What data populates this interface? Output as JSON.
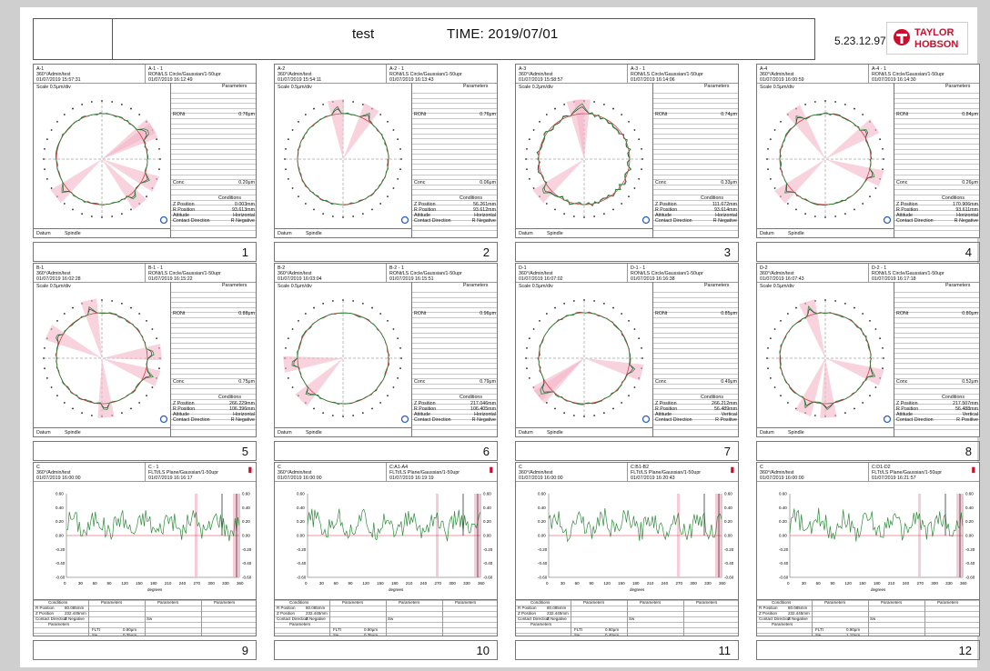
{
  "header": {
    "title": "test",
    "time": "TIME: 2019/07/01",
    "version": "5.23.12.97"
  },
  "logo": {
    "line1": "TAYLOR",
    "line2": "HOBSON",
    "color": "#c8102e"
  },
  "panels": [
    {
      "n": "1",
      "id": "A-1",
      "id2": "A-1 - 1",
      "user": "360°/Admin/test",
      "date": "01/07/2019 15:57:31",
      "method": "RONt/LS Circle/Gaussian/1-50upr",
      "date2": "01/07/2019 16:12:49",
      "scale": "Scale 0.5μm/div",
      "ront": "0.76μm",
      "conc": "0.20μm",
      "zpos": "0.003mm",
      "rpos": "93.613mm",
      "att": "Horizontal",
      "dir": "R Negative"
    },
    {
      "n": "2",
      "id": "A-2",
      "id2": "A-2 - 1",
      "user": "360°/Admin/test",
      "date": "01/07/2019 15:54:11",
      "method": "RONt/LS Circle/Gaussian/1-50upr",
      "date2": "01/07/2019 16:13:43",
      "scale": "Scale 0.5μm/div",
      "ront": "0.76μm",
      "conc": "0.06μm",
      "zpos": "56.261mm",
      "rpos": "93.612mm",
      "att": "Horizontal",
      "dir": "R Negative"
    },
    {
      "n": "3",
      "id": "A-3",
      "id2": "A-3 - 1",
      "user": "360°/Admin/test",
      "date": "01/07/2019 15:58:57",
      "method": "RONt/LS Circle/Gaussian/1-50upr",
      "date2": "01/07/2019 16:14:06",
      "scale": "Scale 0.2μm/div",
      "ront": "0.74μm",
      "conc": "0.33μm",
      "zpos": "111.672mm",
      "rpos": "93.614mm",
      "att": "Horizontal",
      "dir": "R Negative"
    },
    {
      "n": "4",
      "id": "A-4",
      "id2": "A-4 - 1",
      "user": "360°/Admin/test",
      "date": "01/07/2019 16:00:59",
      "method": "RONt/LS Circle/Gaussian/1-50upr",
      "date2": "01/07/2019 16:14:30",
      "scale": "Scale 0.5μm/div",
      "ront": "0.84μm",
      "conc": "0.26μm",
      "zpos": "170.906mm",
      "rpos": "93.611mm",
      "att": "Horizontal",
      "dir": "R Negative"
    },
    {
      "n": "5",
      "id": "B-1",
      "id2": "B-1 - 1",
      "user": "360°/Admin/test",
      "date": "01/07/2019 16:02:28",
      "method": "RONt/LS Circle/Gaussian/1-50upr",
      "date2": "01/07/2019 16:15:22",
      "scale": "Scale 0.5μm/div",
      "ront": "0.88μm",
      "conc": "0.75μm",
      "zpos": "266.229mm",
      "rpos": "106.396mm",
      "att": "Horizontal",
      "dir": "R Negative"
    },
    {
      "n": "6",
      "id": "B-2",
      "id2": "B-2 - 1",
      "user": "360°/Admin/test",
      "date": "01/07/2019 16:03:04",
      "method": "RONt/LS Circle/Gaussian/1-50upr",
      "date2": "01/07/2019 16:15:51",
      "scale": "Scale 0.5μm/div",
      "ront": "0.96μm",
      "conc": "0.79μm",
      "zpos": "217.046mm",
      "rpos": "106.405mm",
      "att": "Horizontal",
      "dir": "R Negative"
    },
    {
      "n": "7",
      "id": "D-1",
      "id2": "D-1 - 1",
      "user": "360°/Admin/test",
      "date": "01/07/2019 16:07:02",
      "method": "RONt/LS Circle/Gaussian/1-50upr",
      "date2": "01/07/2019 16:16:38",
      "scale": "Scale 0.5μm/div",
      "ront": "0.85μm",
      "conc": "0.49μm",
      "zpos": "266.212mm",
      "rpos": "56.489mm",
      "att": "Vertical",
      "dir": "R Positive"
    },
    {
      "n": "8",
      "id": "D-2",
      "id2": "D-2 - 1",
      "user": "360°/Admin/test",
      "date": "01/07/2019 16:07:43",
      "method": "RONt/LS Circle/Gaussian/1-50upr",
      "date2": "01/07/2019 16:17:18",
      "scale": "Scale 0.5μm/div",
      "ront": "0.80μm",
      "conc": "0.52μm",
      "zpos": "217.507mm",
      "rpos": "56.488mm",
      "att": "Vertical",
      "dir": "R Positive"
    }
  ],
  "labels": {
    "parameters": "Parameters",
    "ront": "RONt",
    "conc": "Conc",
    "conditions": "Conditions",
    "zpos": "Z Position",
    "rpos": "R Position",
    "attitude": "Attitude",
    "contact": "Contact Direction",
    "datum": "Datum",
    "spindle": "Spindle",
    "degrees": "degrees",
    "flt": "FLTt",
    "sw": "Sw",
    "rpos_s": "R Position",
    "zpos_s": "Z Position",
    "att_s": "Contact Direction"
  },
  "linear": [
    {
      "n": "9",
      "id": "C",
      "id2": "C - 1",
      "user": "360°/Admin/test",
      "date": "01/07/2019 16:00:00",
      "method": "FLTt/LS Plane/Gaussian/1-50upr",
      "date2": "01/07/2019 16:16:17",
      "flt": "0.90μm",
      "sw": "0.35μm",
      "r": "80.085mm",
      "z": "232.445mm",
      "cd": "Z Negative"
    },
    {
      "n": "10",
      "id": "C",
      "id2": "C:A1-A4",
      "user": "360°/Admin/test",
      "date": "01/07/2019 16:00:00",
      "method": "FLTt/LS Plane/Gaussian/1-50upr",
      "date2": "01/07/2019 16:19:19",
      "flt": "0.90μm",
      "sw": "0.35μm",
      "r": "80.085mm",
      "z": "232.445mm",
      "cd": "Z Negative"
    },
    {
      "n": "11",
      "id": "C",
      "id2": "C:B1-B2",
      "user": "360°/Admin/test",
      "date": "01/07/2019 16:00:00",
      "method": "FLTt/LS Plane/Gaussian/1-50upr",
      "date2": "01/07/2019 16:20:43",
      "flt": "0.90μm",
      "sw": "0.40μm",
      "r": "80.085mm",
      "z": "232.445mm",
      "cd": "Z Negative"
    },
    {
      "n": "12",
      "id": "C",
      "id2": "C:D1-D2",
      "user": "360°/Admin/test",
      "date": "01/07/2019 16:00:00",
      "method": "FLTt/LS Plane/Gaussian/1-50upr",
      "date2": "01/07/2019 16:21:57",
      "flt": "0.90μm",
      "sw": "1.10μm",
      "r": "80.085mm",
      "z": "232.445mm",
      "cd": "Z Negative"
    }
  ],
  "linear_axis": {
    "yticks": [
      "0.60",
      "0.40",
      "0.20",
      "0.00",
      "-0.20",
      "-0.40",
      "-0.60"
    ],
    "xticks": [
      "0",
      "30",
      "60",
      "90",
      "120",
      "150",
      "180",
      "210",
      "240",
      "270",
      "300",
      "330",
      "360"
    ]
  }
}
